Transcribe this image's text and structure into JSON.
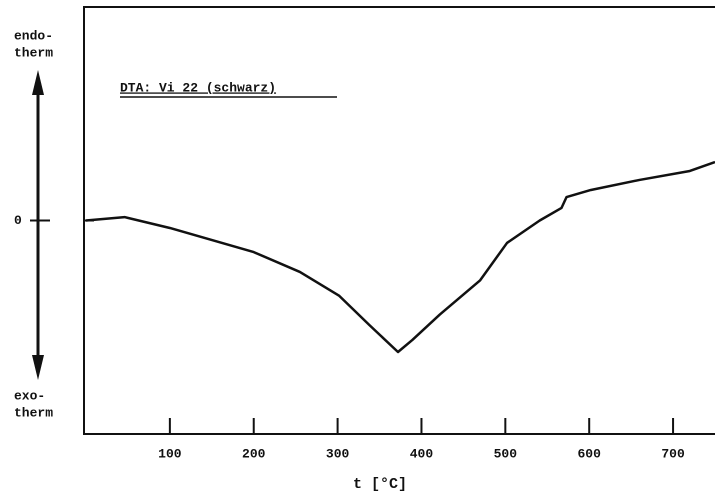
{
  "chart_data": {
    "type": "line",
    "annotation": "DTA: Vi 22 (schwarz)",
    "y_top_label": [
      "endo-",
      "therm"
    ],
    "y_bottom_label": [
      "exo-",
      "therm"
    ],
    "x_label": "t [°C]",
    "xlim": [
      0,
      750
    ],
    "xticks": [
      100,
      200,
      300,
      400,
      500,
      600,
      700
    ],
    "ylim": [
      -10,
      10
    ],
    "yticks": [
      0
    ],
    "color": "#111111",
    "x": [
      0,
      46,
      100,
      200,
      255,
      302,
      338,
      372,
      389,
      422,
      470,
      502,
      541,
      567,
      573,
      602,
      660,
      720,
      750
    ],
    "values": [
      0.0,
      0.16,
      -0.35,
      -1.48,
      -2.41,
      -3.53,
      -4.9,
      -6.16,
      -5.6,
      -4.4,
      -2.8,
      -1.05,
      0.0,
      0.59,
      1.1,
      1.43,
      1.9,
      2.32,
      2.74
    ]
  }
}
